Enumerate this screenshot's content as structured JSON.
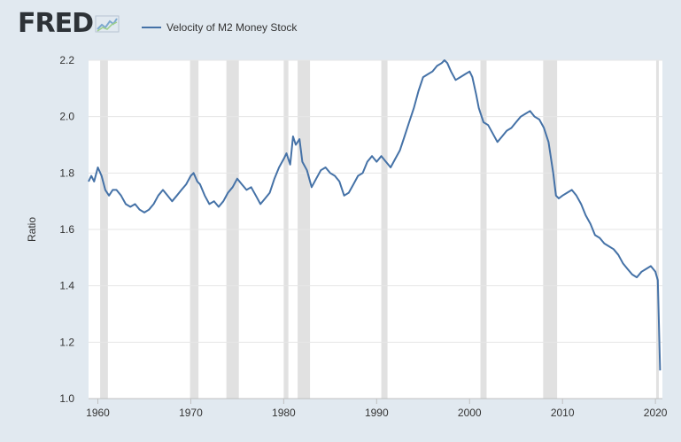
{
  "logo": {
    "text": "FRED"
  },
  "chart_data": {
    "type": "line",
    "title": "",
    "ylabel": "Ratio",
    "xlabel": "",
    "xlim": [
      1959,
      2020.75
    ],
    "ylim": [
      1.0,
      2.2
    ],
    "yticks": [
      1.0,
      1.2,
      1.4,
      1.6,
      1.8,
      2.0,
      2.2
    ],
    "ytick_labels": [
      "1.0",
      "1.2",
      "1.4",
      "1.6",
      "1.8",
      "2.0",
      "2.2"
    ],
    "xticks": [
      1960,
      1970,
      1980,
      1990,
      2000,
      2010,
      2020
    ],
    "xtick_labels": [
      "1960",
      "1970",
      "1980",
      "1990",
      "2000",
      "2010",
      "2020"
    ],
    "grid": "horizontal",
    "legend": "top-left",
    "recessions": [
      [
        1960.25,
        1961.08
      ],
      [
        1969.92,
        1970.83
      ],
      [
        1973.83,
        1975.17
      ],
      [
        1980.0,
        1980.5
      ],
      [
        1981.5,
        1982.83
      ],
      [
        1990.5,
        1991.17
      ],
      [
        2001.17,
        2001.83
      ],
      [
        2007.92,
        2009.42
      ],
      [
        2020.08,
        2020.33
      ]
    ],
    "series": [
      {
        "name": "Velocity of M2 Money Stock",
        "color": "#4572a7",
        "x": [
          1959.0,
          1959.3,
          1959.6,
          1960.0,
          1960.4,
          1960.8,
          1961.2,
          1961.6,
          1962.0,
          1962.5,
          1963.0,
          1963.5,
          1964.0,
          1964.5,
          1965.0,
          1965.5,
          1966.0,
          1966.5,
          1967.0,
          1967.5,
          1968.0,
          1968.5,
          1969.0,
          1969.5,
          1970.0,
          1970.3,
          1970.7,
          1971.0,
          1971.5,
          1972.0,
          1972.5,
          1973.0,
          1973.5,
          1974.0,
          1974.5,
          1975.0,
          1975.5,
          1976.0,
          1976.5,
          1977.0,
          1977.5,
          1978.0,
          1978.5,
          1979.0,
          1979.5,
          1980.0,
          1980.3,
          1980.7,
          1981.0,
          1981.3,
          1981.7,
          1982.0,
          1982.5,
          1983.0,
          1983.5,
          1984.0,
          1984.5,
          1985.0,
          1985.5,
          1986.0,
          1986.5,
          1987.0,
          1987.5,
          1988.0,
          1988.5,
          1989.0,
          1989.5,
          1990.0,
          1990.5,
          1991.0,
          1991.5,
          1992.0,
          1992.5,
          1993.0,
          1993.5,
          1994.0,
          1994.5,
          1995.0,
          1995.5,
          1996.0,
          1996.5,
          1997.0,
          1997.3,
          1997.6,
          1998.0,
          1998.5,
          1999.0,
          1999.5,
          2000.0,
          2000.3,
          2000.7,
          2001.0,
          2001.5,
          2002.0,
          2002.5,
          2003.0,
          2003.5,
          2004.0,
          2004.5,
          2005.0,
          2005.5,
          2006.0,
          2006.5,
          2007.0,
          2007.5,
          2008.0,
          2008.5,
          2009.0,
          2009.3,
          2009.6,
          2010.0,
          2010.5,
          2011.0,
          2011.5,
          2012.0,
          2012.5,
          2013.0,
          2013.5,
          2014.0,
          2014.5,
          2015.0,
          2015.5,
          2016.0,
          2016.5,
          2017.0,
          2017.5,
          2018.0,
          2018.5,
          2019.0,
          2019.5,
          2020.0,
          2020.25,
          2020.5
        ],
        "values": [
          1.77,
          1.79,
          1.77,
          1.82,
          1.79,
          1.74,
          1.72,
          1.74,
          1.74,
          1.72,
          1.69,
          1.68,
          1.69,
          1.67,
          1.66,
          1.67,
          1.69,
          1.72,
          1.74,
          1.72,
          1.7,
          1.72,
          1.74,
          1.76,
          1.79,
          1.8,
          1.77,
          1.76,
          1.72,
          1.69,
          1.7,
          1.68,
          1.7,
          1.73,
          1.75,
          1.78,
          1.76,
          1.74,
          1.75,
          1.72,
          1.69,
          1.71,
          1.73,
          1.78,
          1.82,
          1.85,
          1.87,
          1.83,
          1.93,
          1.9,
          1.92,
          1.84,
          1.81,
          1.75,
          1.78,
          1.81,
          1.82,
          1.8,
          1.79,
          1.77,
          1.72,
          1.73,
          1.76,
          1.79,
          1.8,
          1.84,
          1.86,
          1.84,
          1.86,
          1.84,
          1.82,
          1.85,
          1.88,
          1.93,
          1.98,
          2.03,
          2.09,
          2.14,
          2.15,
          2.16,
          2.18,
          2.19,
          2.2,
          2.19,
          2.16,
          2.13,
          2.14,
          2.15,
          2.16,
          2.14,
          2.08,
          2.03,
          1.98,
          1.97,
          1.94,
          1.91,
          1.93,
          1.95,
          1.96,
          1.98,
          2.0,
          2.01,
          2.02,
          2.0,
          1.99,
          1.96,
          1.91,
          1.8,
          1.72,
          1.71,
          1.72,
          1.73,
          1.74,
          1.72,
          1.69,
          1.65,
          1.62,
          1.58,
          1.57,
          1.55,
          1.54,
          1.53,
          1.51,
          1.48,
          1.46,
          1.44,
          1.43,
          1.45,
          1.46,
          1.47,
          1.45,
          1.42,
          1.1
        ]
      }
    ]
  }
}
